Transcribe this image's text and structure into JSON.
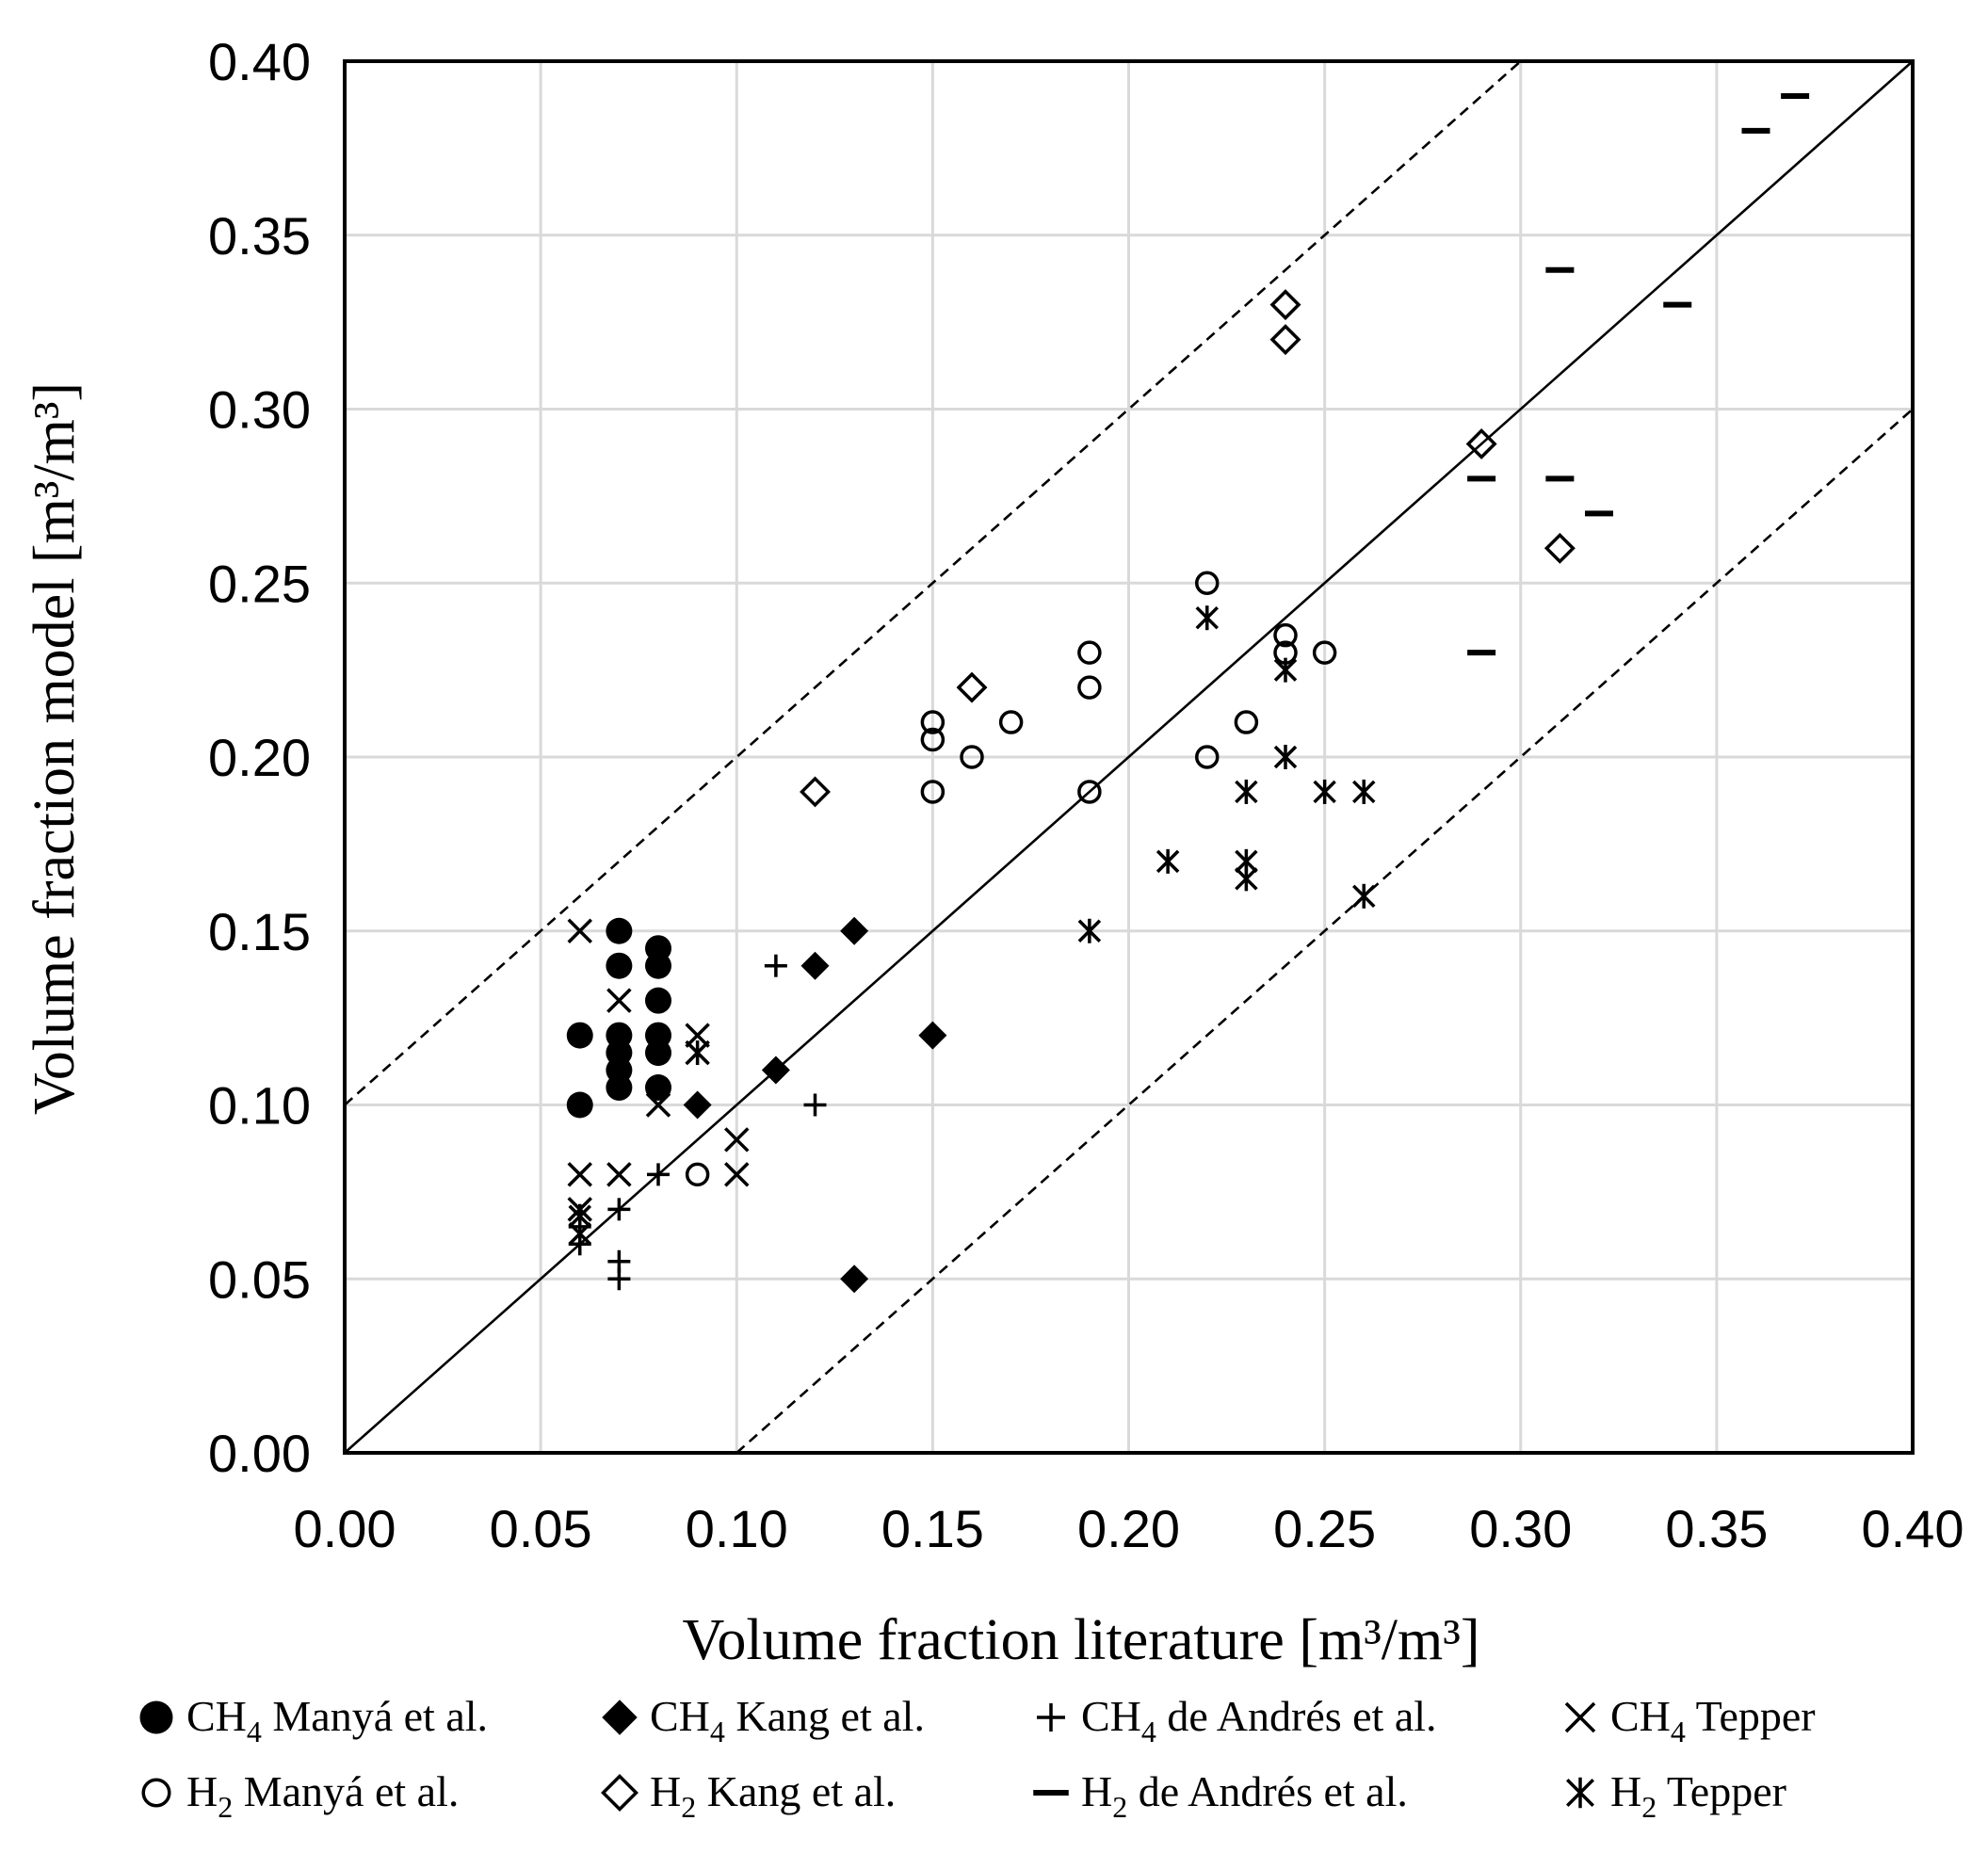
{
  "chart_data": {
    "type": "scatter",
    "xlabel": "Volume fraction literature [m³/m³]",
    "ylabel": "Volume fraction model [m³/m³]",
    "xlim": [
      0,
      0.4
    ],
    "ylim": [
      0,
      0.4
    ],
    "x_ticks": [
      "0.00",
      "0.05",
      "0.10",
      "0.15",
      "0.20",
      "0.25",
      "0.30",
      "0.35",
      "0.40"
    ],
    "y_ticks": [
      "0.00",
      "0.05",
      "0.10",
      "0.15",
      "0.20",
      "0.25",
      "0.30",
      "0.35",
      "0.40"
    ],
    "grid": true,
    "reference_lines": [
      {
        "name": "parity",
        "style": "solid",
        "offset": 0.0
      },
      {
        "name": "upper bound",
        "style": "dashed",
        "offset": 0.1
      },
      {
        "name": "lower bound",
        "style": "dashed",
        "offset": -0.1
      }
    ],
    "legend_position": "bottom",
    "series": [
      {
        "name": "CH4 Manyá et al.",
        "gas": "CH",
        "sub": "4",
        "author": " Manyá et al.",
        "marker": "filled-circle",
        "points": [
          [
            0.06,
            0.12
          ],
          [
            0.06,
            0.1
          ],
          [
            0.07,
            0.15
          ],
          [
            0.07,
            0.14
          ],
          [
            0.07,
            0.12
          ],
          [
            0.07,
            0.115
          ],
          [
            0.07,
            0.11
          ],
          [
            0.07,
            0.105
          ],
          [
            0.08,
            0.145
          ],
          [
            0.08,
            0.14
          ],
          [
            0.08,
            0.13
          ],
          [
            0.08,
            0.12
          ],
          [
            0.08,
            0.115
          ],
          [
            0.08,
            0.105
          ]
        ]
      },
      {
        "name": "CH4 Kang et al.",
        "gas": "CH",
        "sub": "4",
        "author": " Kang et al.",
        "marker": "filled-diamond",
        "points": [
          [
            0.09,
            0.1
          ],
          [
            0.11,
            0.11
          ],
          [
            0.12,
            0.14
          ],
          [
            0.13,
            0.15
          ],
          [
            0.15,
            0.12
          ],
          [
            0.13,
            0.05
          ]
        ]
      },
      {
        "name": "CH4 de Andrés et al.",
        "gas": "CH",
        "sub": "4",
        "author": " de Andrés et al.",
        "marker": "plus",
        "points": [
          [
            0.06,
            0.065
          ],
          [
            0.06,
            0.06
          ],
          [
            0.07,
            0.07
          ],
          [
            0.07,
            0.055
          ],
          [
            0.07,
            0.05
          ],
          [
            0.08,
            0.08
          ],
          [
            0.11,
            0.14
          ],
          [
            0.12,
            0.1
          ]
        ]
      },
      {
        "name": "CH4 Tepper",
        "gas": "CH",
        "sub": "4",
        "author": " Tepper",
        "marker": "x",
        "points": [
          [
            0.06,
            0.15
          ],
          [
            0.06,
            0.08
          ],
          [
            0.06,
            0.07
          ],
          [
            0.07,
            0.13
          ],
          [
            0.07,
            0.08
          ],
          [
            0.08,
            0.1
          ],
          [
            0.09,
            0.12
          ],
          [
            0.09,
            0.115
          ],
          [
            0.1,
            0.09
          ],
          [
            0.1,
            0.08
          ]
        ]
      },
      {
        "name": "H2 Manyá et al.",
        "gas": "H",
        "sub": "2",
        "author": " Manyá et al.",
        "marker": "open-circle",
        "points": [
          [
            0.09,
            0.08
          ],
          [
            0.15,
            0.21
          ],
          [
            0.15,
            0.205
          ],
          [
            0.15,
            0.19
          ],
          [
            0.16,
            0.2
          ],
          [
            0.17,
            0.21
          ],
          [
            0.19,
            0.23
          ],
          [
            0.19,
            0.22
          ],
          [
            0.19,
            0.19
          ],
          [
            0.22,
            0.25
          ],
          [
            0.22,
            0.2
          ],
          [
            0.23,
            0.21
          ],
          [
            0.24,
            0.235
          ],
          [
            0.24,
            0.23
          ],
          [
            0.25,
            0.23
          ]
        ]
      },
      {
        "name": "H2 Kang et al.",
        "gas": "H",
        "sub": "2",
        "author": " Kang et al.",
        "marker": "open-diamond",
        "points": [
          [
            0.12,
            0.19
          ],
          [
            0.16,
            0.22
          ],
          [
            0.24,
            0.33
          ],
          [
            0.24,
            0.32
          ],
          [
            0.29,
            0.29
          ],
          [
            0.31,
            0.26
          ]
        ]
      },
      {
        "name": "H2 de Andrés et al.",
        "gas": "H",
        "sub": "2",
        "author": " de Andrés et al.",
        "marker": "dash",
        "points": [
          [
            0.29,
            0.28
          ],
          [
            0.29,
            0.23
          ],
          [
            0.31,
            0.34
          ],
          [
            0.31,
            0.28
          ],
          [
            0.32,
            0.27
          ],
          [
            0.34,
            0.33
          ],
          [
            0.36,
            0.38
          ],
          [
            0.37,
            0.39
          ]
        ]
      },
      {
        "name": "H2 Tepper",
        "gas": "H",
        "sub": "2",
        "author": " Tepper",
        "marker": "asterisk",
        "points": [
          [
            0.06,
            0.068
          ],
          [
            0.06,
            0.063
          ],
          [
            0.09,
            0.115
          ],
          [
            0.19,
            0.15
          ],
          [
            0.21,
            0.17
          ],
          [
            0.22,
            0.24
          ],
          [
            0.23,
            0.19
          ],
          [
            0.23,
            0.17
          ],
          [
            0.23,
            0.165
          ],
          [
            0.24,
            0.225
          ],
          [
            0.24,
            0.2
          ],
          [
            0.25,
            0.19
          ],
          [
            0.26,
            0.19
          ],
          [
            0.26,
            0.16
          ]
        ]
      }
    ]
  }
}
